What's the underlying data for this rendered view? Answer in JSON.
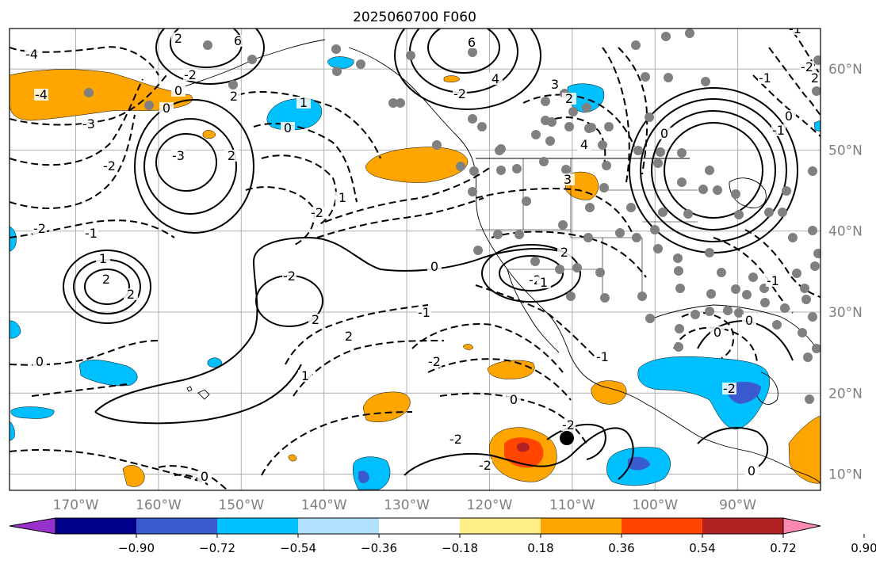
{
  "title": "2025060700 F060",
  "map": {
    "lon_range": [
      -178,
      -80
    ],
    "lat_range": [
      8,
      65
    ],
    "lon_ticks": [
      "170°W",
      "160°W",
      "150°W",
      "140°W",
      "130°W",
      "120°W",
      "110°W",
      "100°W",
      "90°W"
    ],
    "lat_ticks": [
      "60°N",
      "50°N",
      "40°N",
      "30°N",
      "20°N",
      "10°N"
    ],
    "grid": true,
    "contour_labels": [
      "-4",
      "6",
      "2",
      "0",
      "-2",
      "6",
      "4",
      "-2",
      "2",
      "-3",
      "1",
      "0",
      "1",
      "-4",
      "0",
      "-2",
      "4",
      "3",
      "-3",
      "2",
      "-2",
      "2",
      "2",
      "-1",
      "-2",
      "1",
      "-2",
      "2",
      "2",
      "0",
      "-1",
      "-2",
      "2",
      "-2",
      "1",
      "-1",
      "0",
      "0",
      "0",
      "-2",
      "-2",
      "-2",
      "0",
      "1",
      "-2",
      "-1",
      "0",
      "-1",
      "-1",
      "0",
      "-1",
      "0",
      "0",
      "2",
      "3",
      "-2",
      "2"
    ],
    "colors": {
      "orange": "#ffa500",
      "red_orange": "#ff4500",
      "dark_red": "#b22222",
      "cyan": "#00bfff",
      "royal_blue": "#3a5bd0",
      "gray_marker": "#808080"
    }
  },
  "colorbar": {
    "ticks": [
      "−0.90",
      "−0.72",
      "−0.54",
      "−0.36",
      "−0.18",
      "0.18",
      "0.36",
      "0.54",
      "0.72",
      "0.90"
    ],
    "colors": [
      "#9932cc",
      "#00008b",
      "#3a5bd0",
      "#00bfff",
      "#b0e0fe",
      "#ffffff",
      "#ffee88",
      "#ffa500",
      "#ff4500",
      "#b22222",
      "#ff88b0"
    ],
    "extend": "both"
  }
}
